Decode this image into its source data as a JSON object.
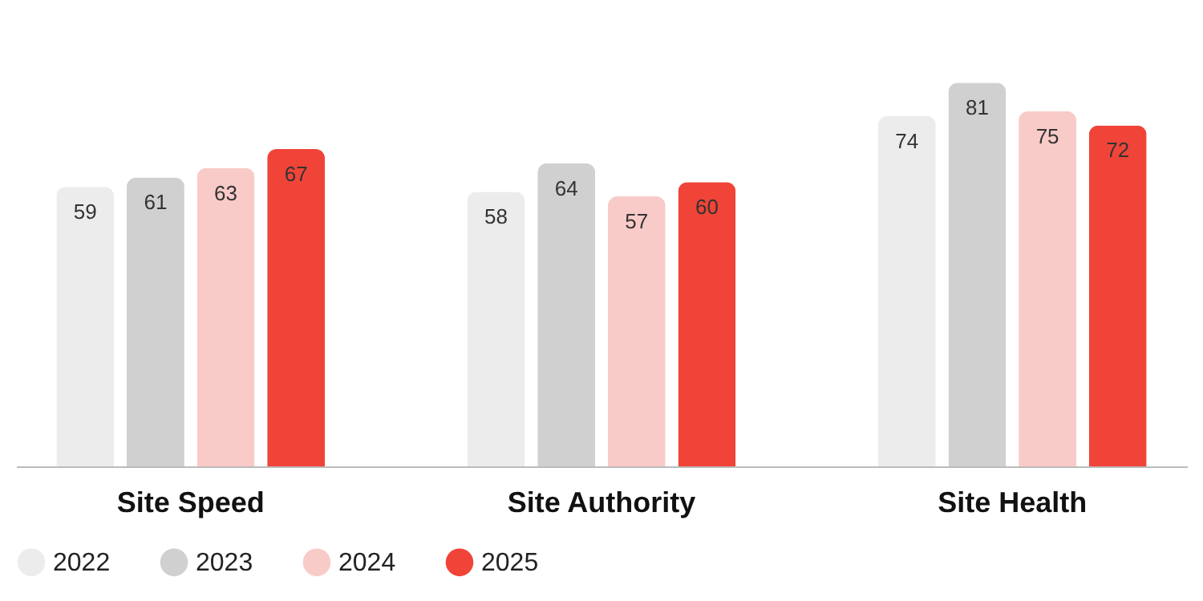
{
  "chart_data": {
    "type": "bar",
    "categories": [
      "Site Speed",
      "Site Authority",
      "Site Health"
    ],
    "series": [
      {
        "name": "2022",
        "color": "#ececec",
        "values": [
          59,
          58,
          74
        ]
      },
      {
        "name": "2023",
        "color": "#d0d0d0",
        "values": [
          61,
          64,
          81
        ]
      },
      {
        "name": "2024",
        "color": "#f9cbc8",
        "values": [
          63,
          57,
          75
        ]
      },
      {
        "name": "2025",
        "color": "#f04438",
        "values": [
          67,
          60,
          72
        ]
      }
    ],
    "data_labels": true,
    "grid": false,
    "legend": "bottom"
  }
}
